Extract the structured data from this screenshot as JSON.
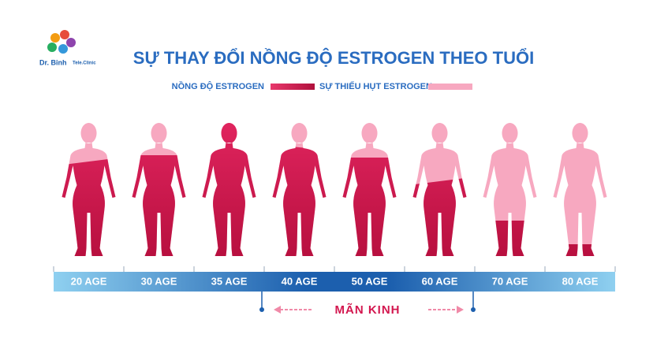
{
  "logo": {
    "name": "Dr. Binh",
    "sub": "Tele.Clinic"
  },
  "title": "SỰ THAY ĐỔI NỒNG ĐỘ ESTROGEN THEO TUỔI",
  "legend": [
    "NỒNG ĐỘ ESTROGEN",
    "SỰ THIẾU HỤT ESTROGEN"
  ],
  "timeline": {
    "ages": [
      "20 AGE",
      "30 AGE",
      "35 AGE",
      "40 AGE",
      "50 AGE",
      "60 AGE",
      "70 AGE",
      "80 AGE"
    ],
    "menopause": "MÃN KINH"
  }
}
